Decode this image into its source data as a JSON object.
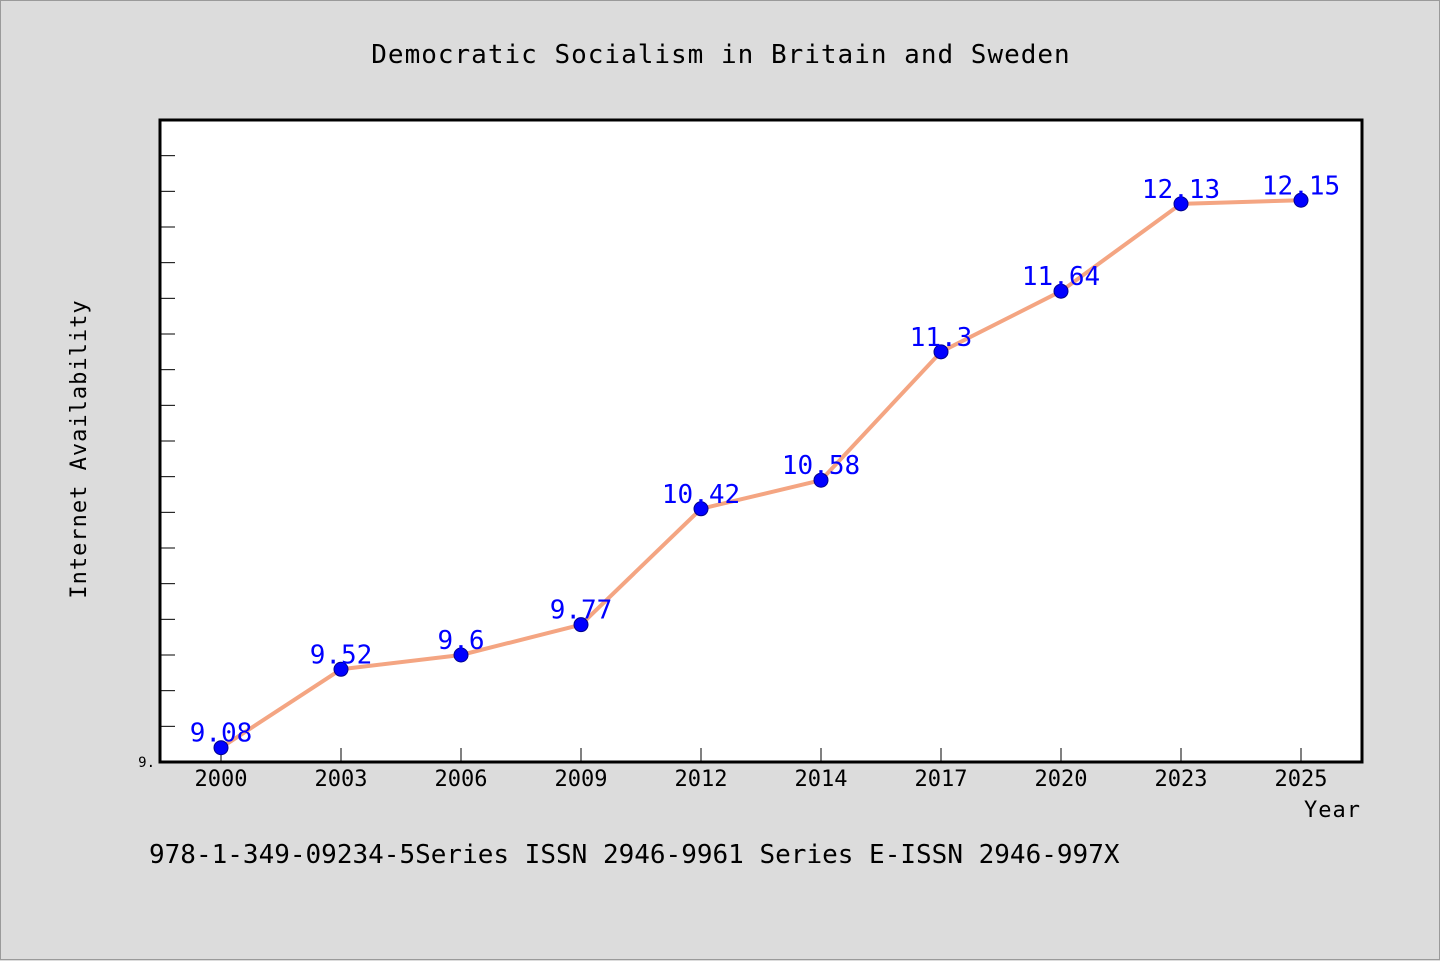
{
  "chart_data": {
    "type": "line",
    "title": "Democratic Socialism in Britain and Sweden",
    "xlabel": "Year",
    "ylabel": "Internet Availability",
    "y_axis_origin_label": "9.",
    "categories": [
      "2000",
      "2003",
      "2006",
      "2009",
      "2012",
      "2014",
      "2017",
      "2020",
      "2023",
      "2025"
    ],
    "values": [
      9.08,
      9.52,
      9.6,
      9.77,
      10.42,
      10.58,
      11.3,
      11.64,
      12.13,
      12.15
    ],
    "data_labels": [
      "9.08",
      "9.52",
      "9.6",
      "9.77",
      "10.42",
      "10.58",
      "11.3",
      "11.64",
      "12.13",
      "12.15"
    ],
    "ylim": [
      9.0,
      12.6
    ],
    "grid": false,
    "line_color": "#f4a582",
    "marker_color": "#0000ff",
    "label_color": "#0000ff"
  },
  "footer_text": "978-1-349-09234-5Series ISSN 2946-9961 Series E-ISSN 2946-997X"
}
